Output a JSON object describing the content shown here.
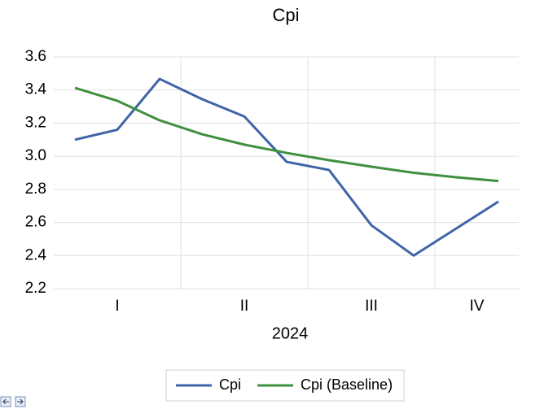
{
  "chart_data": {
    "type": "line",
    "title": "Cpi",
    "x_label": "2024",
    "categories": [
      null,
      null,
      null,
      null,
      null,
      null,
      null,
      null,
      null,
      null,
      null
    ],
    "x_groups": [
      {
        "label": "I",
        "span": 3
      },
      {
        "label": "II",
        "span": 3
      },
      {
        "label": "III",
        "span": 3
      },
      {
        "label": "IV",
        "span": 2
      }
    ],
    "series": [
      {
        "name": "Cpi",
        "color": "#4064a8",
        "values": [
          3.1,
          3.16,
          3.467,
          3.345,
          3.24,
          2.966,
          2.917,
          2.583,
          2.4,
          2.563,
          2.726
        ]
      },
      {
        "name": "Cpi (Baseline)",
        "color": "#3f9140",
        "values": [
          3.413,
          3.335,
          3.217,
          3.133,
          3.07,
          3.02,
          2.976,
          2.937,
          2.9,
          2.873,
          2.85
        ]
      }
    ],
    "ylim": [
      2.2,
      3.6
    ],
    "yticks": [
      2.2,
      2.4,
      2.6,
      2.8,
      {
        "value": 3,
        "label": "3.0"
      },
      3.2,
      3.4,
      3.6
    ],
    "grid": true,
    "legend": "bottom"
  }
}
